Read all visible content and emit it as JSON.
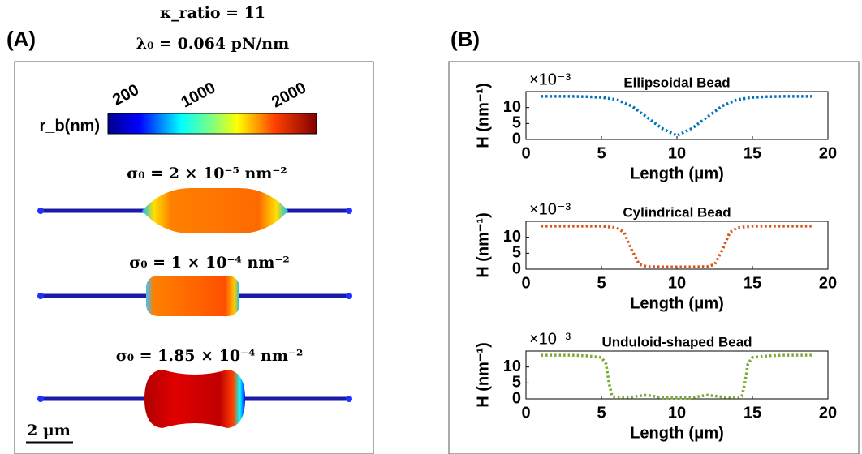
{
  "panel_a": {
    "label": "(A)",
    "kappa": "κ_ratio = 11",
    "lambda": "λ₀ = 0.064 pN/nm",
    "colorbar": {
      "label": "r_b(nm)",
      "clim": [
        0,
        2300
      ],
      "ticks": [
        200,
        1000,
        2000
      ]
    },
    "beads": [
      "σ₀ = 2 × 10⁻⁵ nm⁻²",
      "σ₀ = 1 × 10⁻⁴ nm⁻²",
      "σ₀ = 1.85 × 10⁻⁴ nm⁻²"
    ],
    "scale_bar": "2 μm"
  },
  "panel_b": {
    "label": "(B)"
  },
  "chart_data": [
    {
      "type": "line",
      "title": "Ellipsoidal Bead",
      "x_label": "Length (μm)",
      "y_label": "H (nm⁻¹)",
      "y_multiplier": "×10⁻³",
      "xlim": [
        0,
        20
      ],
      "xticks": [
        0,
        5,
        10,
        15,
        20
      ],
      "ylim": [
        0,
        15
      ],
      "yticks": [
        0,
        5,
        10
      ],
      "series": [
        {
          "color": "#0072bd",
          "x": [
            1,
            2,
            3,
            4,
            5,
            6,
            7,
            8,
            9,
            10,
            11,
            12,
            13,
            14,
            15,
            16,
            17,
            18,
            19
          ],
          "values": [
            13.5,
            13.5,
            13.5,
            13.4,
            13.2,
            12.5,
            10.5,
            7,
            3.5,
            1.2,
            3.5,
            7,
            10.5,
            12.5,
            13.2,
            13.4,
            13.5,
            13.5,
            13.5
          ]
        }
      ]
    },
    {
      "type": "line",
      "title": "Cylindrical Bead",
      "x_label": "Length (μm)",
      "y_label": "H (nm⁻¹)",
      "y_multiplier": "×10⁻³",
      "xlim": [
        0,
        20
      ],
      "xticks": [
        0,
        5,
        10,
        15,
        20
      ],
      "ylim": [
        0,
        15
      ],
      "yticks": [
        0,
        5,
        10
      ],
      "series": [
        {
          "color": "#d95319",
          "x": [
            1,
            2,
            3,
            4,
            5,
            6,
            6.5,
            7,
            7.5,
            8,
            9,
            10,
            11,
            12,
            12.5,
            13,
            13.5,
            14,
            15,
            16,
            17,
            18,
            19
          ],
          "values": [
            13.5,
            13.5,
            13.5,
            13.5,
            13.5,
            13,
            11.5,
            6,
            1.5,
            0.8,
            0.7,
            0.7,
            0.7,
            0.8,
            1.5,
            6,
            11.5,
            13,
            13.5,
            13.5,
            13.5,
            13.5,
            13.5
          ]
        }
      ]
    },
    {
      "type": "line",
      "title": "Unduloid-shaped Bead",
      "x_label": "Length (μm)",
      "y_label": "H (nm⁻¹)",
      "y_multiplier": "×10⁻³",
      "xlim": [
        0,
        20
      ],
      "xticks": [
        0,
        5,
        10,
        15,
        20
      ],
      "ylim": [
        0,
        15
      ],
      "yticks": [
        0,
        5,
        10
      ],
      "series": [
        {
          "color": "#77ac30",
          "x": [
            1,
            2,
            3,
            4,
            5,
            5.3,
            5.5,
            5.7,
            6,
            7,
            8,
            9,
            10,
            11,
            12,
            13,
            14,
            14.3,
            14.5,
            14.7,
            15,
            16,
            17,
            18,
            19
          ],
          "values": [
            13.7,
            13.7,
            13.7,
            13.5,
            13,
            11,
            5,
            0.8,
            0.5,
            0.6,
            1.2,
            0.4,
            0.3,
            0.4,
            1.2,
            0.6,
            0.5,
            0.8,
            5,
            11,
            13,
            13.5,
            13.7,
            13.7,
            13.7
          ]
        }
      ]
    }
  ]
}
